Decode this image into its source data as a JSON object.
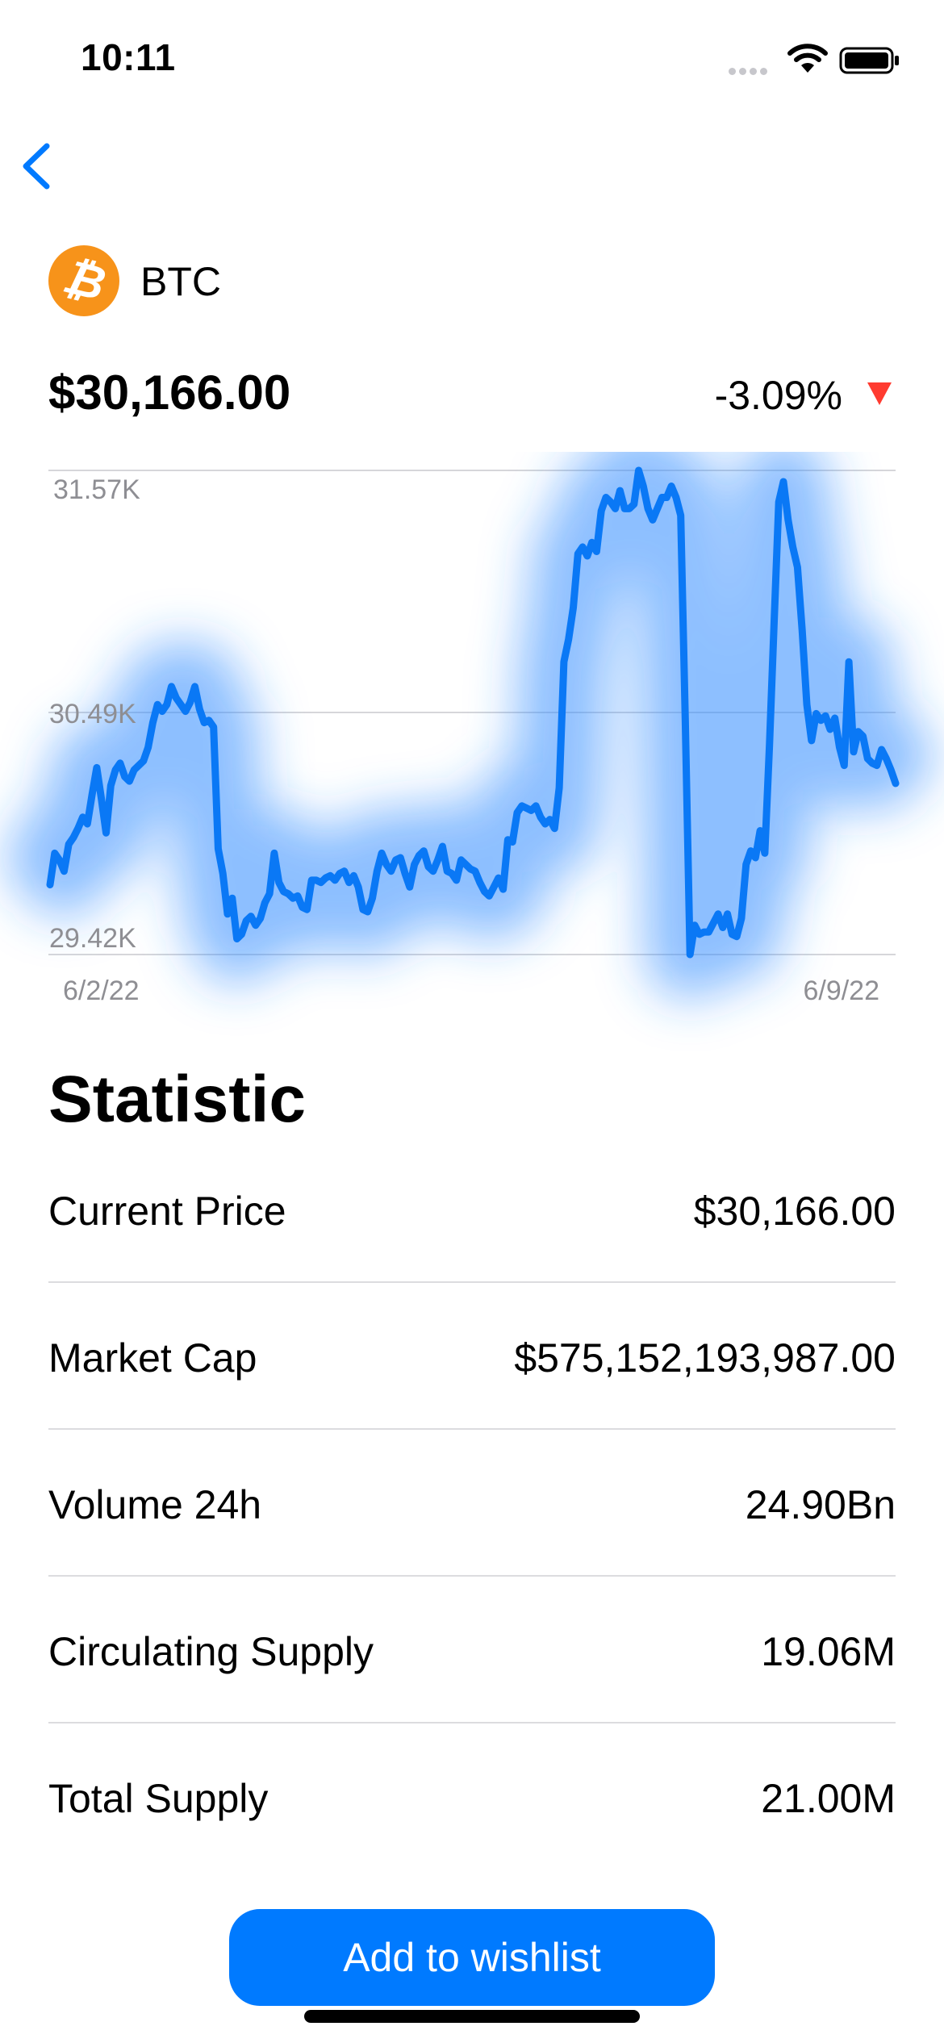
{
  "status_bar": {
    "time": "10:11"
  },
  "coin": {
    "symbol": "BTC",
    "logo_glyph": "₿",
    "logo_color": "#F7931A"
  },
  "price": "$30,166.00",
  "change": "-3.09%",
  "change_color": "#FF3B30",
  "accent_color": "#007AFF",
  "chart_data": {
    "type": "line",
    "ylim": [
      29.42,
      31.57
    ],
    "y_ticks": [
      "31.57K",
      "30.49K",
      "29.42K"
    ],
    "x_ticks": [
      "6/2/22",
      "6/9/22"
    ],
    "grid": true,
    "series": [
      {
        "values": [
          29.73,
          29.87,
          29.84,
          29.79,
          29.91,
          29.94,
          29.98,
          30.03,
          30.0,
          30.13,
          30.25,
          30.11,
          29.96,
          30.17,
          30.24,
          30.27,
          30.21,
          30.19,
          30.24,
          30.26,
          30.28,
          30.34,
          30.45,
          30.53,
          30.5,
          30.53,
          30.61,
          30.56,
          30.53,
          30.5,
          30.54,
          30.61,
          30.51,
          30.45,
          30.46,
          30.43,
          29.89,
          29.78,
          29.6,
          29.67,
          29.49,
          29.51,
          29.57,
          29.59,
          29.55,
          29.58,
          29.65,
          29.69,
          29.87,
          29.74,
          29.7,
          29.69,
          29.67,
          29.68,
          29.63,
          29.62,
          29.75,
          29.75,
          29.74,
          29.76,
          29.77,
          29.75,
          29.78,
          29.79,
          29.74,
          29.77,
          29.72,
          29.62,
          29.61,
          29.67,
          29.79,
          29.87,
          29.82,
          29.79,
          29.84,
          29.85,
          29.78,
          29.72,
          29.82,
          29.86,
          29.88,
          29.81,
          29.79,
          29.84,
          29.9,
          29.79,
          29.78,
          29.75,
          29.84,
          29.82,
          29.8,
          29.79,
          29.74,
          29.7,
          29.68,
          29.72,
          29.76,
          29.71,
          29.93,
          29.92,
          30.05,
          30.08,
          30.07,
          30.06,
          30.08,
          30.03,
          30.0,
          30.02,
          29.98,
          30.16,
          30.72,
          30.82,
          30.96,
          31.2,
          31.23,
          31.19,
          31.25,
          31.21,
          31.39,
          31.45,
          31.43,
          31.4,
          31.48,
          31.4,
          31.4,
          31.42,
          31.57,
          31.5,
          31.4,
          31.35,
          31.4,
          31.45,
          31.45,
          31.5,
          31.45,
          31.37,
          30.45,
          29.42,
          29.55,
          29.51,
          29.52,
          29.52,
          29.56,
          29.6,
          29.54,
          29.6,
          29.51,
          29.5,
          29.58,
          29.82,
          29.88,
          29.85,
          29.97,
          29.87,
          30.35,
          30.9,
          31.43,
          31.52,
          31.35,
          31.23,
          31.14,
          30.86,
          30.53,
          30.37,
          30.49,
          30.46,
          30.48,
          30.42,
          30.47,
          30.34,
          30.26,
          30.72,
          30.32,
          30.41,
          30.39,
          30.29,
          30.27,
          30.26,
          30.33,
          30.29,
          30.24,
          30.18
        ]
      }
    ]
  },
  "statistic": {
    "heading": "Statistic",
    "rows": [
      {
        "label": "Current Price",
        "value": "$30,166.00"
      },
      {
        "label": "Market Cap",
        "value": "$575,152,193,987.00"
      },
      {
        "label": "Volume 24h",
        "value": "24.90Bn"
      },
      {
        "label": "Circulating Supply",
        "value": "19.06M"
      },
      {
        "label": "Total Supply",
        "value": "21.00M"
      }
    ]
  },
  "wishlist_button": {
    "label": "Add to wishlist"
  },
  "icons": [
    "signal-icon",
    "wifi-icon",
    "battery-icon",
    "back-chevron-icon",
    "bitcoin-logo-icon",
    "down-arrow-icon"
  ]
}
